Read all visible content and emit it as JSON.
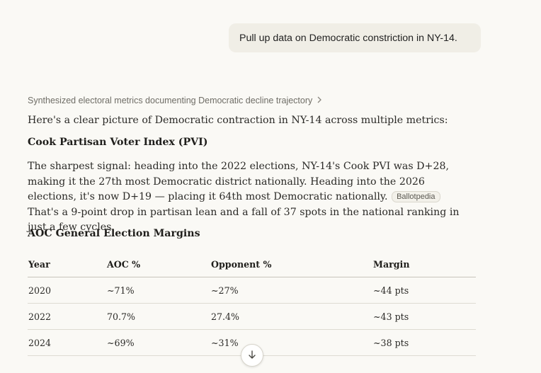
{
  "user_message": "Pull up data on Democratic constriction in NY-14.",
  "thinking_summary": "Synthesized electoral metrics documenting Democratic decline trajectory",
  "intro": "Here's a clear picture of Democratic contraction in NY-14 across multiple metrics:",
  "pvi_section": {
    "heading": "Cook Partisan Voter Index (PVI)",
    "text_before": "The sharpest signal: heading into the 2022 elections, NY-14's Cook PVI was D+28, making it the 27th most Democratic district nationally. Heading into the 2026 elections, it's now D+19 — placing it 64th most Democratic nationally.",
    "citation": "Ballotpedia",
    "text_after": "That's a 9-point drop in partisan lean and a fall of 37 spots in the national ranking in just a few cycles."
  },
  "margins_section": {
    "heading": "AOC General Election Margins",
    "columns": [
      "Year",
      "AOC %",
      "Opponent %",
      "Margin"
    ],
    "rows": [
      [
        "2020",
        "~71%",
        "~27%",
        "~44 pts"
      ],
      [
        "2022",
        "70.7%",
        "27.4%",
        "~43 pts"
      ],
      [
        "2024",
        "~69%",
        "~31%",
        "~38 pts"
      ]
    ]
  },
  "icons": {
    "summary_chevron": "chevron-right-icon",
    "scroll_button": "arrow-down-icon"
  }
}
